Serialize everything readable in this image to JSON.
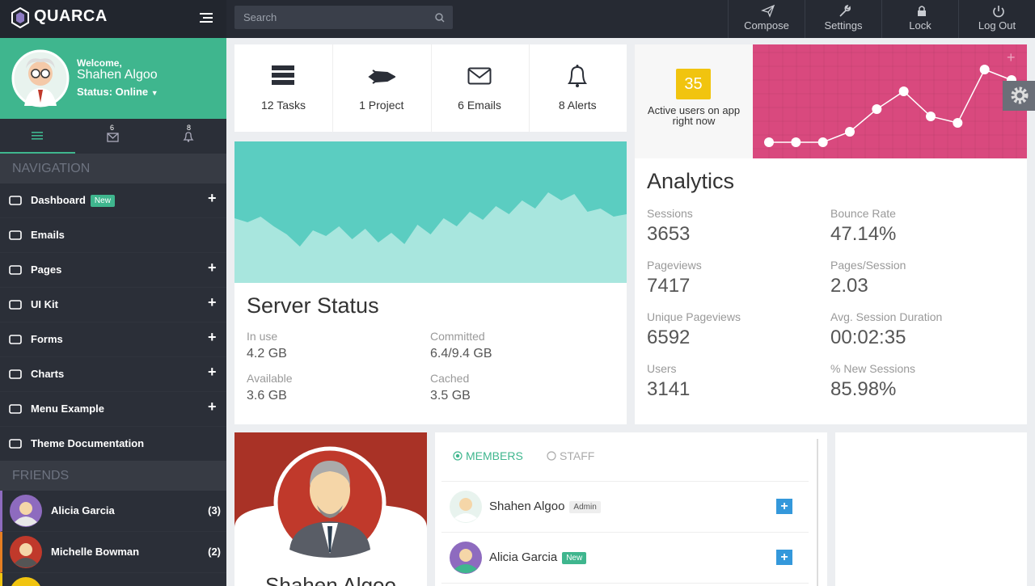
{
  "brand": "QUARCA",
  "search_placeholder": "Search",
  "top_actions": [
    "Compose",
    "Settings",
    "Lock",
    "Log Out"
  ],
  "profile": {
    "greeting": "Welcome,",
    "name": "Shahen Algoo",
    "status": "Status: Online"
  },
  "tabs": {
    "messages_badge": 6,
    "alerts_badge": 8
  },
  "navigation": {
    "heading": "NAVIGATION",
    "items": [
      {
        "label": "Dashboard",
        "badge": "New",
        "expandable": true
      },
      {
        "label": "Emails",
        "expandable": false
      },
      {
        "label": "Pages",
        "expandable": true
      },
      {
        "label": "UI Kit",
        "expandable": true
      },
      {
        "label": "Forms",
        "expandable": true
      },
      {
        "label": "Charts",
        "expandable": true
      },
      {
        "label": "Menu Example",
        "expandable": true
      },
      {
        "label": "Theme Documentation",
        "expandable": false
      }
    ]
  },
  "friends": {
    "heading": "FRIENDS",
    "items": [
      {
        "name": "Alicia Garcia",
        "count": "(3)"
      },
      {
        "name": "Michelle Bowman",
        "count": "(2)"
      }
    ]
  },
  "stats": [
    "12 Tasks",
    "1 Project",
    "6 Emails",
    "8 Alerts"
  ],
  "active_users": {
    "value": 35,
    "label": "Active users on app right now"
  },
  "active_users_chart": {
    "type": "line",
    "values": [
      20,
      20,
      20,
      33,
      61,
      83,
      52,
      44,
      110,
      97
    ],
    "ylim": [
      0,
      141
    ],
    "color": "#ffffff"
  },
  "server_chart": {
    "type": "area",
    "values": [
      80,
      75,
      82,
      70,
      60,
      45,
      65,
      58,
      70,
      54,
      67,
      50,
      62,
      48,
      72,
      60,
      80,
      70,
      88,
      78,
      95,
      85,
      102,
      92,
      112,
      102,
      110,
      88,
      92,
      82,
      85
    ],
    "ylim": [
      0,
      175
    ],
    "color": "#a8e6de"
  },
  "server_status": {
    "title": "Server Status",
    "metrics": [
      {
        "label": "In use",
        "value": "4.2 GB"
      },
      {
        "label": "Committed",
        "value": "6.4/9.4 GB"
      },
      {
        "label": "Available",
        "value": "3.6 GB"
      },
      {
        "label": "Cached",
        "value": "3.5 GB"
      }
    ]
  },
  "analytics": {
    "title": "Analytics",
    "metrics": [
      {
        "label": "Sessions",
        "value": 3653
      },
      {
        "label": "Bounce Rate",
        "value": "47.14%"
      },
      {
        "label": "Pageviews",
        "value": 7417
      },
      {
        "label": "Pages/Session",
        "value": 2.03
      },
      {
        "label": "Unique Pageviews",
        "value": 6592
      },
      {
        "label": "Avg. Session Duration",
        "value": "00:02:35"
      },
      {
        "label": "Users",
        "value": 3141
      },
      {
        "label": "% New Sessions",
        "value": "85.98%"
      }
    ]
  },
  "profile_card": {
    "name": "Shahen Algoo"
  },
  "members": {
    "tabs": [
      "MEMBERS",
      "STAFF"
    ],
    "rows": [
      {
        "name": "Shahen Algoo",
        "tag": "Admin"
      },
      {
        "name": "Alicia Garcia",
        "tag": "New"
      }
    ]
  }
}
